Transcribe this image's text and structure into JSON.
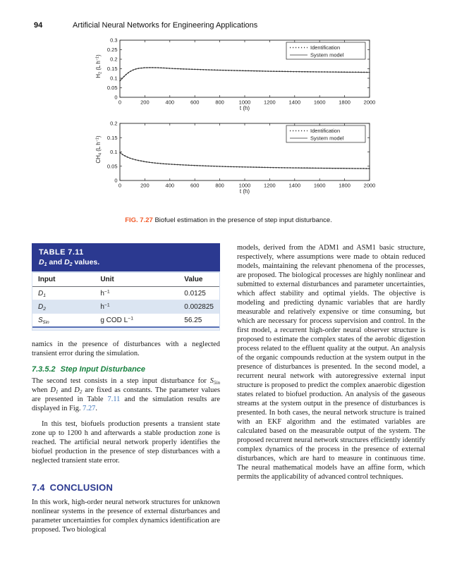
{
  "colors": {
    "table_header": "#2b3990",
    "heading_green": "#17813f",
    "heading_blue": "#2b3990",
    "link": "#3a72b8",
    "caption_label": "#f15a29",
    "row_stripe": "#dbe5f2"
  },
  "page": {
    "number": "94",
    "running_title": "Artificial Neural Networks for Engineering Applications"
  },
  "figure": {
    "caption_label": "FIG. 7.27",
    "caption_text": "Biofuel estimation in the presence of step input disturbance."
  },
  "chart_data": [
    {
      "type": "line",
      "ylabel_segments": [
        {
          "t": "H",
          "sub": "2"
        },
        {
          "t": " (L h"
        },
        {
          "sup": "−1"
        },
        {
          "t": ")"
        }
      ],
      "xlabel": "t (h)",
      "xlim": [
        0,
        2000
      ],
      "ylim": [
        0,
        0.3
      ],
      "xticks": [
        0,
        200,
        400,
        600,
        800,
        1000,
        1200,
        1400,
        1600,
        1800,
        2000
      ],
      "xticklabels": [
        "0",
        "200",
        "400",
        "600",
        "800",
        "1000",
        "1200",
        "1400",
        "1600",
        "1800",
        "2000"
      ],
      "yticks": [
        0,
        0.05,
        0.1,
        0.15,
        0.2,
        0.25,
        0.3
      ],
      "yticklabels": [
        "0",
        "0.05",
        "0.1",
        "0.15",
        "0.2",
        "0.25",
        "0.3"
      ],
      "legend": [
        "Identification",
        "System model"
      ],
      "legend_position": "top-right",
      "grid": false,
      "series": [
        {
          "name": "Identification",
          "style": "dotted",
          "x": [
            0,
            25,
            50,
            75,
            100,
            125,
            150,
            200,
            250,
            300,
            350,
            400,
            500,
            600,
            700,
            800,
            900,
            1000,
            1100,
            1200,
            1300,
            1400,
            1500,
            1600,
            1700,
            1800,
            1900,
            2000
          ],
          "y": [
            0.086,
            0.104,
            0.12,
            0.133,
            0.142,
            0.148,
            0.152,
            0.1555,
            0.156,
            0.1555,
            0.154,
            0.152,
            0.149,
            0.1465,
            0.1445,
            0.1425,
            0.141,
            0.1395,
            0.138,
            0.1368,
            0.1358,
            0.1349,
            0.1341,
            0.1334,
            0.1328,
            0.1322,
            0.1317,
            0.1312
          ]
        },
        {
          "name": "System model",
          "style": "solid",
          "x": [
            0,
            25,
            50,
            75,
            100,
            125,
            150,
            200,
            250,
            300,
            350,
            400,
            500,
            600,
            700,
            800,
            900,
            1000,
            1100,
            1200,
            1300,
            1400,
            1500,
            1600,
            1700,
            1800,
            1900,
            2000
          ],
          "y": [
            0.086,
            0.104,
            0.12,
            0.133,
            0.142,
            0.148,
            0.152,
            0.1555,
            0.156,
            0.1555,
            0.154,
            0.152,
            0.149,
            0.1465,
            0.1445,
            0.1425,
            0.141,
            0.1395,
            0.138,
            0.1368,
            0.1358,
            0.1349,
            0.1341,
            0.1334,
            0.1328,
            0.1322,
            0.1317,
            0.1312
          ]
        }
      ]
    },
    {
      "type": "line",
      "ylabel_segments": [
        {
          "t": "CH",
          "sub": "4"
        },
        {
          "t": " (L h"
        },
        {
          "sup": "−1"
        },
        {
          "t": ")"
        }
      ],
      "xlabel": "t (h)",
      "xlim": [
        0,
        2000
      ],
      "ylim": [
        0,
        0.2
      ],
      "xticks": [
        0,
        200,
        400,
        600,
        800,
        1000,
        1200,
        1400,
        1600,
        1800,
        2000
      ],
      "xticklabels": [
        "0",
        "200",
        "400",
        "600",
        "800",
        "1000",
        "1200",
        "1400",
        "1600",
        "1800",
        "2000"
      ],
      "yticks": [
        0,
        0.05,
        0.1,
        0.15,
        0.2
      ],
      "yticklabels": [
        "0",
        "0.05",
        "0.1",
        "0.15",
        "0.2"
      ],
      "legend": [
        "Identification",
        "System model"
      ],
      "legend_position": "top-right",
      "grid": false,
      "series": [
        {
          "name": "Identification",
          "style": "dotted",
          "x": [
            0,
            25,
            50,
            75,
            100,
            125,
            150,
            200,
            250,
            300,
            350,
            400,
            500,
            600,
            700,
            800,
            900,
            1000,
            1100,
            1200,
            1300,
            1400,
            1500,
            1600,
            1700,
            1800,
            1900,
            2000
          ],
          "y": [
            0.098,
            0.09,
            0.084,
            0.079,
            0.0755,
            0.0725,
            0.07,
            0.066,
            0.0628,
            0.0605,
            0.0585,
            0.057,
            0.0545,
            0.0525,
            0.0508,
            0.0494,
            0.0482,
            0.0472,
            0.0463,
            0.0455,
            0.0448,
            0.0442,
            0.0437,
            0.0432,
            0.0428,
            0.0424,
            0.042,
            0.0417
          ]
        },
        {
          "name": "System model",
          "style": "solid",
          "x": [
            0,
            25,
            50,
            75,
            100,
            125,
            150,
            200,
            250,
            300,
            350,
            400,
            500,
            600,
            700,
            800,
            900,
            1000,
            1100,
            1200,
            1300,
            1400,
            1500,
            1600,
            1700,
            1800,
            1900,
            2000
          ],
          "y": [
            0.098,
            0.09,
            0.084,
            0.079,
            0.0755,
            0.0725,
            0.07,
            0.066,
            0.0628,
            0.0605,
            0.0585,
            0.057,
            0.0545,
            0.0525,
            0.0508,
            0.0494,
            0.0482,
            0.0472,
            0.0463,
            0.0455,
            0.0448,
            0.0442,
            0.0437,
            0.0432,
            0.0428,
            0.0424,
            0.042,
            0.0417
          ]
        }
      ]
    }
  ],
  "table": {
    "title_line1": "TABLE 7.11",
    "title_line2_segments": [
      {
        "t": "D",
        "s": "var",
        "sub": "1"
      },
      {
        "t": " and "
      },
      {
        "t": "D",
        "s": "var",
        "sub": "2"
      },
      {
        "t": " values."
      }
    ],
    "columns": [
      "Input",
      "Unit",
      "Value"
    ],
    "rows": [
      {
        "input": [
          {
            "t": "D",
            "s": "var",
            "sub": "1"
          }
        ],
        "unit": [
          {
            "t": "h",
            "sup": "−1"
          }
        ],
        "value": "0.0125"
      },
      {
        "input": [
          {
            "t": "D",
            "s": "var",
            "sub": "2"
          }
        ],
        "unit": [
          {
            "t": "h",
            "sup": "−1"
          }
        ],
        "value": "0.002825"
      },
      {
        "input": [
          {
            "t": "S",
            "s": "var",
            "sub": "5in"
          }
        ],
        "unit": [
          {
            "t": "g COD L",
            "sup": "−1"
          }
        ],
        "value": "56.25"
      }
    ]
  },
  "left_column": {
    "para_continuation": "namics in the presence of disturbances with a neglected transient error during the simulation.",
    "section_heading": {
      "number": "7.3.5.2",
      "text": "Step Input Disturbance"
    },
    "para_step_segments": [
      {
        "t": "The second test consists in a step input disturbance for "
      },
      {
        "t": "S",
        "s": "var",
        "sub": "5in"
      },
      {
        "t": " when "
      },
      {
        "t": "D",
        "s": "var",
        "sub": "1"
      },
      {
        "t": " and "
      },
      {
        "t": "D",
        "s": "var",
        "sub": "2"
      },
      {
        "t": " are fixed as constants. The parameter values are presented in Table "
      },
      {
        "t": "7.11",
        "s": "link"
      },
      {
        "t": " and the simulation results are displayed in Fig. "
      },
      {
        "t": "7.27",
        "s": "link"
      },
      {
        "t": "."
      }
    ],
    "para_test": "In this test, biofuels production presents a transient state zone up to 1200 h and afterwards a stable production zone is reached. The artificial neural network properly identifies the biofuel production in the presence of step disturbances with a neglected transient state error.",
    "conclusion_heading": {
      "number": "7.4",
      "text": "CONCLUSION"
    },
    "para_conclusion": "In this work, high-order neural network structures for unknown nonlinear systems in the presence of external disturbances and parameter uncertainties for complex dynamics identification are proposed. Two biological"
  },
  "right_column": {
    "para": "models, derived from the ADM1 and ASM1 basic structure, respectively, where assumptions were made to obtain reduced models, maintaining the relevant phenomena of the processes, are proposed. The biological processes are highly nonlinear and submitted to external disturbances and parameter uncertainties, which affect stability and optimal yields. The objective is modeling and predicting dynamic variables that are hardly measurable and relatively expensive or time consuming, but which are necessary for process supervision and control. In the first model, a recurrent high-order neural observer structure is proposed to estimate the complex states of the aerobic digestion process related to the effluent quality at the output. An analysis of the organic compounds reduction at the system output in the presence of disturbances is presented. In the second model, a recurrent neural network with autoregressive external input structure is proposed to predict the complex anaerobic digestion states related to biofuel production. An analysis of the gaseous streams at the system output in the presence of disturbances is presented. In both cases, the neural network structure is trained with an EKF algorithm and the estimated variables are calculated based on the measurable output of the system. The proposed recurrent neural network structures efficiently identify complex dynamics of the process in the presence of external disturbances, which are hard to measure in continuous time. The neural mathematical models have an affine form, which permits the applicability of advanced control techniques."
  }
}
